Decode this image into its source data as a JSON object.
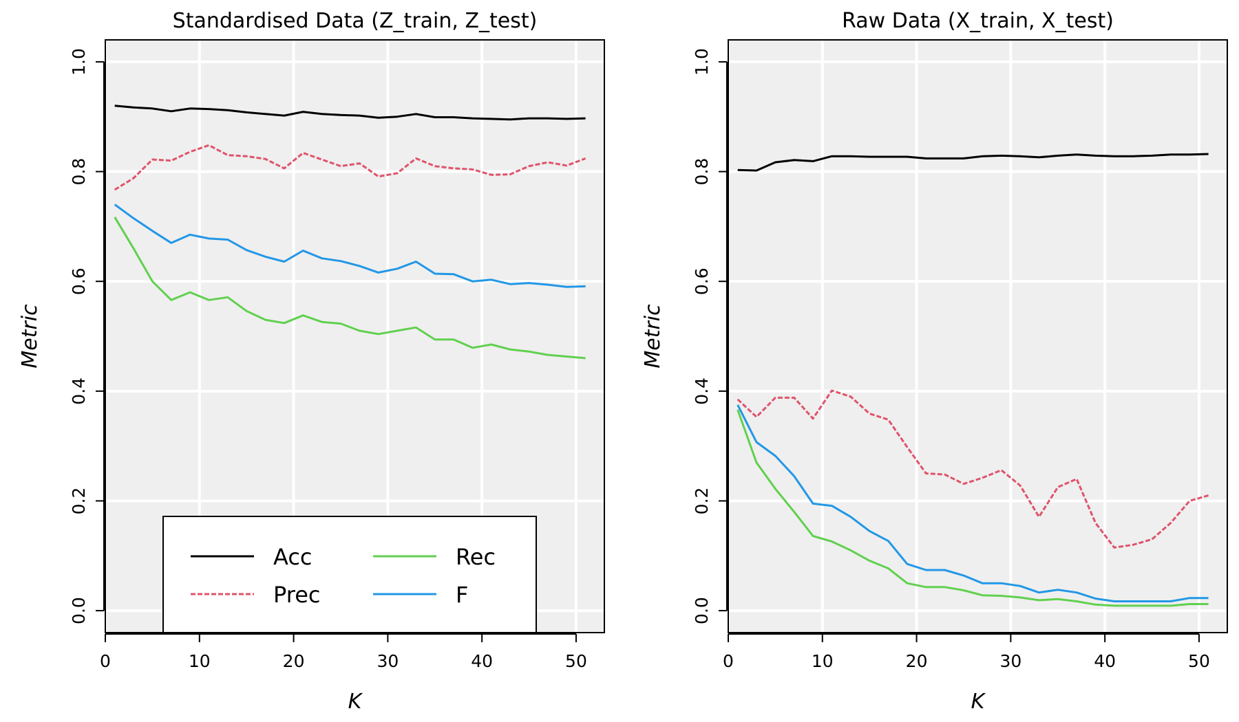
{
  "chart_data": [
    {
      "type": "line",
      "title": "Standardised Data (Z_train, Z_test)",
      "xlabel": "K",
      "ylabel": "Metric",
      "xlim": [
        0,
        53
      ],
      "ylim": [
        -0.04,
        1.04
      ],
      "x_ticks": [
        0,
        10,
        20,
        30,
        40,
        50
      ],
      "y_ticks": [
        0.0,
        0.2,
        0.4,
        0.6,
        0.8,
        1.0
      ],
      "x_tick_labels": [
        "0",
        "10",
        "20",
        "30",
        "40",
        "50"
      ],
      "y_tick_labels": [
        "0.0",
        "0.2",
        "0.4",
        "0.6",
        "0.8",
        "1.0"
      ],
      "grid": true,
      "legend": "bottom-center",
      "x": [
        1,
        3,
        5,
        7,
        9,
        11,
        13,
        15,
        17,
        19,
        21,
        23,
        25,
        27,
        29,
        31,
        33,
        35,
        37,
        39,
        41,
        43,
        45,
        47,
        49,
        51
      ],
      "series": [
        {
          "name": "Acc",
          "color": "#000000",
          "dash": "solid",
          "values": [
            0.92,
            0.917,
            0.915,
            0.91,
            0.915,
            0.914,
            0.912,
            0.908,
            0.905,
            0.902,
            0.909,
            0.905,
            0.903,
            0.902,
            0.898,
            0.9,
            0.905,
            0.899,
            0.899,
            0.897,
            0.896,
            0.895,
            0.897,
            0.897,
            0.896,
            0.897
          ]
        },
        {
          "name": "Prec",
          "color": "#DF536B",
          "dash": "dashed",
          "values": [
            0.767,
            0.788,
            0.822,
            0.82,
            0.836,
            0.848,
            0.83,
            0.828,
            0.823,
            0.806,
            0.834,
            0.822,
            0.81,
            0.815,
            0.791,
            0.797,
            0.824,
            0.81,
            0.806,
            0.804,
            0.794,
            0.795,
            0.81,
            0.817,
            0.811,
            0.824
          ]
        },
        {
          "name": "Rec",
          "color": "#61D04F",
          "dash": "solid",
          "values": [
            0.717,
            0.66,
            0.6,
            0.566,
            0.58,
            0.566,
            0.571,
            0.546,
            0.53,
            0.524,
            0.538,
            0.526,
            0.523,
            0.51,
            0.504,
            0.51,
            0.516,
            0.494,
            0.494,
            0.479,
            0.485,
            0.476,
            0.472,
            0.466,
            0.463,
            0.46
          ]
        },
        {
          "name": "F",
          "color": "#2297E6",
          "dash": "solid",
          "values": [
            0.74,
            0.715,
            0.692,
            0.67,
            0.685,
            0.678,
            0.676,
            0.657,
            0.645,
            0.636,
            0.656,
            0.642,
            0.637,
            0.628,
            0.616,
            0.623,
            0.636,
            0.614,
            0.613,
            0.6,
            0.603,
            0.595,
            0.597,
            0.594,
            0.59,
            0.591
          ]
        }
      ]
    },
    {
      "type": "line",
      "title": "Raw Data (X_train, X_test)",
      "xlabel": "K",
      "ylabel": "Metric",
      "xlim": [
        0,
        53
      ],
      "ylim": [
        -0.04,
        1.04
      ],
      "x_ticks": [
        0,
        10,
        20,
        30,
        40,
        50
      ],
      "y_ticks": [
        0.0,
        0.2,
        0.4,
        0.6,
        0.8,
        1.0
      ],
      "x_tick_labels": [
        "0",
        "10",
        "20",
        "30",
        "40",
        "50"
      ],
      "y_tick_labels": [
        "0.0",
        "0.2",
        "0.4",
        "0.6",
        "0.8",
        "1.0"
      ],
      "grid": true,
      "x": [
        1,
        3,
        5,
        7,
        9,
        11,
        13,
        15,
        17,
        19,
        21,
        23,
        25,
        27,
        29,
        31,
        33,
        35,
        37,
        39,
        41,
        43,
        45,
        47,
        49,
        51
      ],
      "series": [
        {
          "name": "Acc",
          "color": "#000000",
          "dash": "solid",
          "values": [
            0.803,
            0.802,
            0.817,
            0.821,
            0.819,
            0.828,
            0.828,
            0.827,
            0.827,
            0.827,
            0.824,
            0.824,
            0.824,
            0.828,
            0.829,
            0.828,
            0.826,
            0.829,
            0.831,
            0.829,
            0.828,
            0.828,
            0.829,
            0.831,
            0.831,
            0.832
          ]
        },
        {
          "name": "Prec",
          "color": "#DF536B",
          "dash": "dashed",
          "values": [
            0.385,
            0.353,
            0.388,
            0.388,
            0.35,
            0.401,
            0.39,
            0.359,
            0.348,
            0.298,
            0.25,
            0.248,
            0.231,
            0.242,
            0.256,
            0.228,
            0.171,
            0.225,
            0.24,
            0.16,
            0.115,
            0.12,
            0.13,
            0.16,
            0.2,
            0.21
          ]
        },
        {
          "name": "Rec",
          "color": "#61D04F",
          "dash": "solid",
          "values": [
            0.366,
            0.27,
            0.222,
            0.18,
            0.136,
            0.126,
            0.11,
            0.091,
            0.077,
            0.05,
            0.043,
            0.043,
            0.037,
            0.028,
            0.027,
            0.024,
            0.019,
            0.021,
            0.017,
            0.011,
            0.009,
            0.009,
            0.009,
            0.009,
            0.012,
            0.012
          ]
        },
        {
          "name": "F",
          "color": "#2297E6",
          "dash": "solid",
          "values": [
            0.375,
            0.307,
            0.282,
            0.245,
            0.195,
            0.191,
            0.171,
            0.145,
            0.127,
            0.085,
            0.074,
            0.074,
            0.064,
            0.05,
            0.05,
            0.045,
            0.033,
            0.038,
            0.033,
            0.022,
            0.017,
            0.017,
            0.017,
            0.017,
            0.023,
            0.023
          ]
        }
      ]
    }
  ]
}
